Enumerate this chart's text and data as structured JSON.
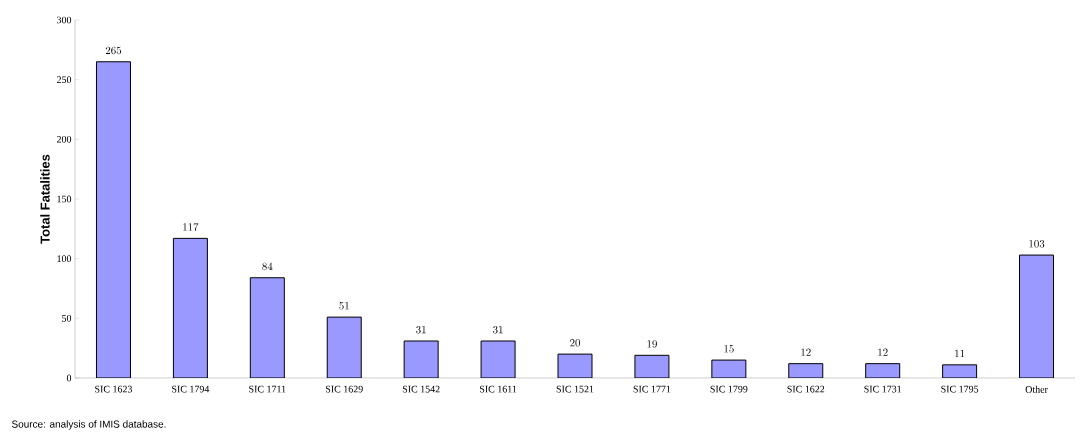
{
  "chart_data": {
    "type": "bar",
    "ylabel": "Total Fatalities",
    "categories": [
      "SIC 1623",
      "SIC 1794",
      "SIC 1711",
      "SIC 1629",
      "SIC 1542",
      "SIC 1611",
      "SIC 1521",
      "SIC 1771",
      "SIC 1799",
      "SIC 1622",
      "SIC 1731",
      "SIC 1795",
      "Other"
    ],
    "values": [
      265,
      117,
      84,
      51,
      31,
      31,
      20,
      19,
      15,
      12,
      12,
      11,
      103
    ],
    "color": "#9999ff",
    "ylim": [
      0,
      300
    ],
    "yticks": [
      0,
      50,
      100,
      150,
      200,
      250,
      300
    ],
    "data_labels": true,
    "annotations": [
      "Source: analysis of IMIS database."
    ]
  }
}
